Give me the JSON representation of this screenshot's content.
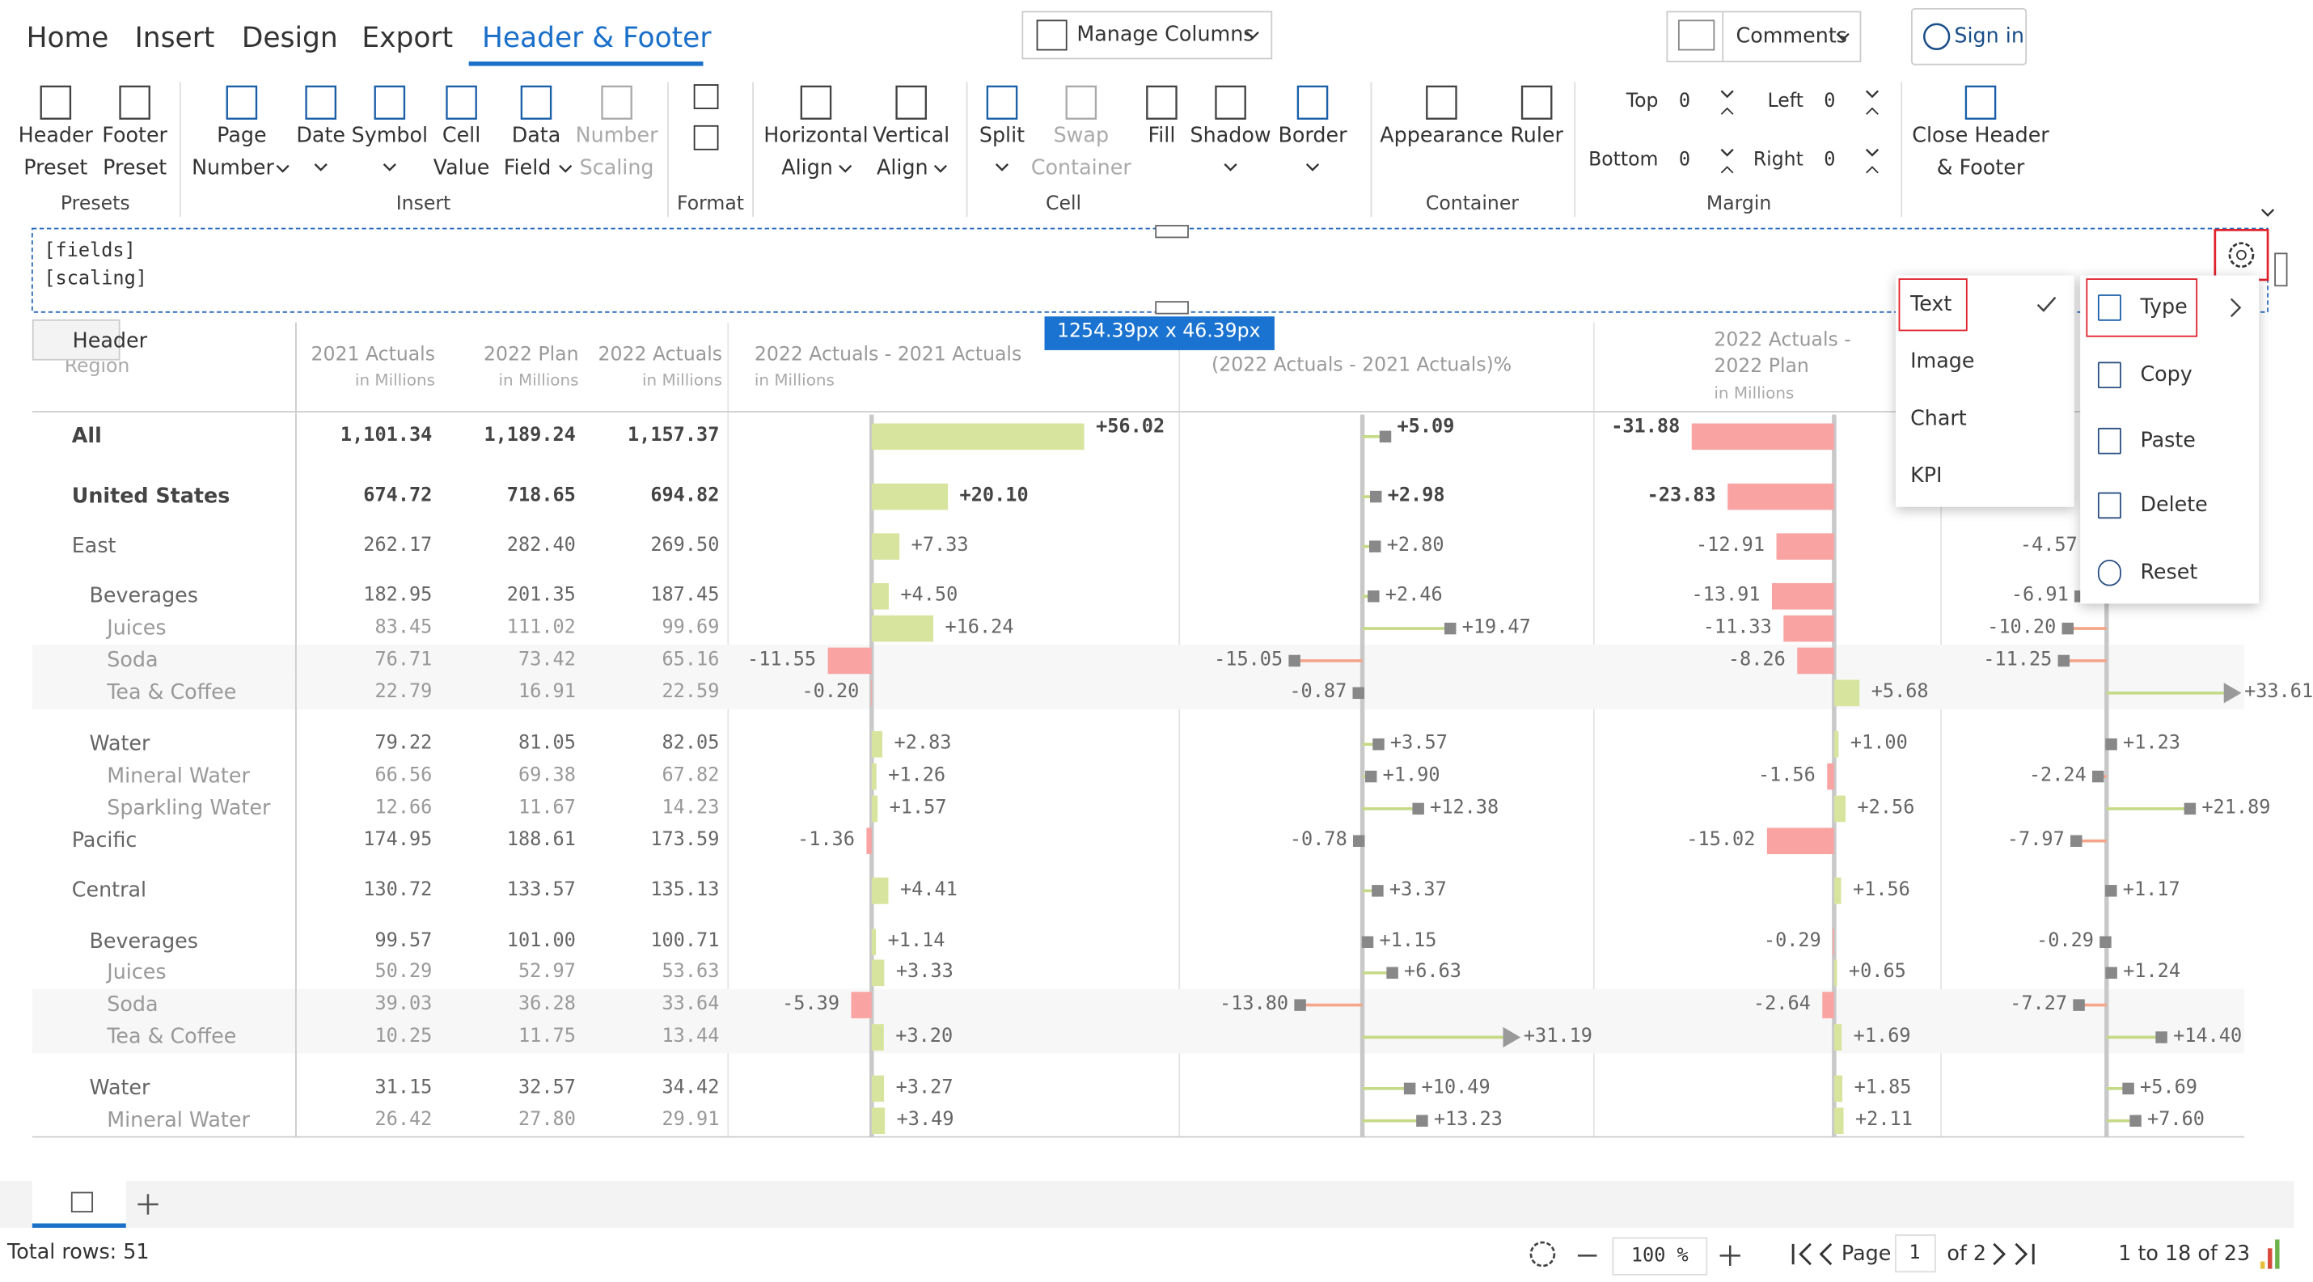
{
  "tabs": [
    "Home",
    "Insert",
    "Design",
    "Export",
    "Header & Footer"
  ],
  "active_tab": 4,
  "toolbar": {
    "manage_columns": "Manage Columns",
    "comments": "Comments",
    "sign_in": "Sign in"
  },
  "ribbon": {
    "buttons": [
      {
        "label": [
          "Header",
          "Preset"
        ]
      },
      {
        "label": [
          "Footer",
          "Preset"
        ]
      },
      {
        "label": [
          "Page",
          "Number"
        ]
      },
      {
        "label": [
          "Date"
        ]
      },
      {
        "label": [
          "Symbol"
        ]
      },
      {
        "label": [
          "Cell",
          "Value"
        ]
      },
      {
        "label": [
          "Data",
          "Field"
        ]
      },
      {
        "label": [
          "Number",
          "Scaling"
        ],
        "disabled": true
      },
      {
        "label": [
          "Horizontal",
          "Align"
        ]
      },
      {
        "label": [
          "Vertical",
          "Align"
        ]
      },
      {
        "label": [
          "Split"
        ]
      },
      {
        "label": [
          "Swap",
          "Container"
        ],
        "disabled": true
      },
      {
        "label": [
          "Fill"
        ]
      },
      {
        "label": [
          "Shadow"
        ]
      },
      {
        "label": [
          "Border"
        ]
      },
      {
        "label": [
          "Appearance"
        ]
      },
      {
        "label": [
          "Ruler"
        ]
      },
      {
        "label": [
          "Close Header",
          "& Footer"
        ]
      }
    ],
    "groups": [
      "Presets",
      "Insert",
      "Format",
      "Cell",
      "Container",
      "Margin"
    ],
    "margin": [
      {
        "label": "Top",
        "value": "0"
      },
      {
        "label": "Left",
        "value": "0"
      },
      {
        "label": "Bottom",
        "value": "0"
      },
      {
        "label": "Right",
        "value": "0"
      }
    ]
  },
  "header_editor": {
    "lines": [
      "[fields]",
      "[scaling]"
    ],
    "label": "Header",
    "size": "1254.39px x 46.39px"
  },
  "type_menu": {
    "items": [
      "Text",
      "Image",
      "Chart",
      "KPI"
    ],
    "checked": 0
  },
  "context_menu": {
    "items": [
      "Type",
      "Copy",
      "Paste",
      "Delete",
      "Reset"
    ]
  },
  "table": {
    "columns": [
      {
        "title": "Region"
      },
      {
        "title": "2021 Actuals",
        "unit": "in Millions"
      },
      {
        "title": "2022 Plan",
        "unit": "in Millions"
      },
      {
        "title": "2022 Actuals",
        "unit": "in Millions"
      },
      {
        "title": "2022 Actuals - 2021 Actuals",
        "unit": "in Millions"
      },
      {
        "title": "(2022 Actuals - 2021 Actuals)%"
      },
      {
        "title": "2022 Actuals - 2022 Plan",
        "unit": "in Millions"
      }
    ],
    "positive_color": "#d6e49d",
    "negative_color": "#f9a3a3",
    "rows": [
      {
        "name": "All",
        "level": 0,
        "bold": true,
        "values": [
          "1,101.34",
          "1,189.24",
          "1,157.37"
        ],
        "delta": "+56.02",
        "delta_pct": "+5.09",
        "plan_delta": "-31.88",
        "plan_pct": null
      },
      {
        "name": "United States",
        "level": 0,
        "bold": true,
        "values": [
          "674.72",
          "718.65",
          "694.82"
        ],
        "delta": "+20.10",
        "delta_pct": "+2.98",
        "plan_delta": "-23.83",
        "plan_pct": null
      },
      {
        "name": "East",
        "level": 1,
        "values": [
          "262.17",
          "282.40",
          "269.50"
        ],
        "delta": "+7.33",
        "delta_pct": "+2.80",
        "plan_delta": "-12.91",
        "plan_pct": "-4.57"
      },
      {
        "name": "Beverages",
        "level": 2,
        "values": [
          "182.95",
          "201.35",
          "187.45"
        ],
        "delta": "+4.50",
        "delta_pct": "+2.46",
        "plan_delta": "-13.91",
        "plan_pct": "-6.91"
      },
      {
        "name": "Juices",
        "level": 3,
        "values": [
          "83.45",
          "111.02",
          "99.69"
        ],
        "delta": "+16.24",
        "delta_pct": "+19.47",
        "plan_delta": "-11.33",
        "plan_pct": "-10.20"
      },
      {
        "name": "Soda",
        "level": 3,
        "values": [
          "76.71",
          "73.42",
          "65.16"
        ],
        "delta": "-11.55",
        "delta_pct": "-15.05",
        "plan_delta": "-8.26",
        "plan_pct": "-11.25"
      },
      {
        "name": "Tea & Coffee",
        "level": 3,
        "values": [
          "22.79",
          "16.91",
          "22.59"
        ],
        "delta": "-0.20",
        "delta_pct": "-0.87",
        "plan_delta": "+5.68",
        "plan_pct": "+33.61"
      },
      {
        "name": "Water",
        "level": 2,
        "values": [
          "79.22",
          "81.05",
          "82.05"
        ],
        "delta": "+2.83",
        "delta_pct": "+3.57",
        "plan_delta": "+1.00",
        "plan_pct": "+1.23"
      },
      {
        "name": "Mineral Water",
        "level": 3,
        "values": [
          "66.56",
          "69.38",
          "67.82"
        ],
        "delta": "+1.26",
        "delta_pct": "+1.90",
        "plan_delta": "-1.56",
        "plan_pct": "-2.24"
      },
      {
        "name": "Sparkling Water",
        "level": 3,
        "values": [
          "12.66",
          "11.67",
          "14.23"
        ],
        "delta": "+1.57",
        "delta_pct": "+12.38",
        "plan_delta": "+2.56",
        "plan_pct": "+21.89"
      },
      {
        "name": "Pacific",
        "level": 1,
        "values": [
          "174.95",
          "188.61",
          "173.59"
        ],
        "delta": "-1.36",
        "delta_pct": "-0.78",
        "plan_delta": "-15.02",
        "plan_pct": "-7.97"
      },
      {
        "name": "Central",
        "level": 1,
        "values": [
          "130.72",
          "133.57",
          "135.13"
        ],
        "delta": "+4.41",
        "delta_pct": "+3.37",
        "plan_delta": "+1.56",
        "plan_pct": "+1.17"
      },
      {
        "name": "Beverages",
        "level": 2,
        "values": [
          "99.57",
          "101.00",
          "100.71"
        ],
        "delta": "+1.14",
        "delta_pct": "+1.15",
        "plan_delta": "-0.29",
        "plan_pct": "-0.29"
      },
      {
        "name": "Juices",
        "level": 3,
        "values": [
          "50.29",
          "52.97",
          "53.63"
        ],
        "delta": "+3.33",
        "delta_pct": "+6.63",
        "plan_delta": "+0.65",
        "plan_pct": "+1.24"
      },
      {
        "name": "Soda",
        "level": 3,
        "values": [
          "39.03",
          "36.28",
          "33.64"
        ],
        "delta": "-5.39",
        "delta_pct": "-13.80",
        "plan_delta": "-2.64",
        "plan_pct": "-7.27"
      },
      {
        "name": "Tea & Coffee",
        "level": 3,
        "values": [
          "10.25",
          "11.75",
          "13.44"
        ],
        "delta": "+3.20",
        "delta_pct": "+31.19",
        "plan_delta": "+1.69",
        "plan_pct": "+14.40"
      },
      {
        "name": "Water",
        "level": 2,
        "values": [
          "31.15",
          "32.57",
          "34.42"
        ],
        "delta": "+3.27",
        "delta_pct": "+10.49",
        "plan_delta": "+1.85",
        "plan_pct": "+5.69"
      },
      {
        "name": "Mineral Water",
        "level": 3,
        "values": [
          "26.42",
          "27.80",
          "29.91"
        ],
        "delta": "+3.49",
        "delta_pct": "+13.23",
        "plan_delta": "+2.11",
        "plan_pct": "+7.60"
      }
    ]
  },
  "status": {
    "total_rows": "Total rows: 51",
    "zoom": "100 %",
    "page_label": "Page",
    "page": "1",
    "page_of": "of 2",
    "range": "1 to 18 of 23"
  }
}
